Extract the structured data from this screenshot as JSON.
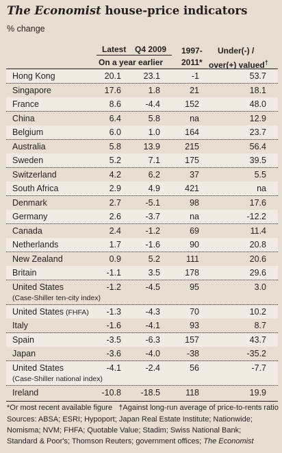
{
  "title": {
    "italic_part": "The Economist",
    "rest": "house-price indicators"
  },
  "subtitle": "% change",
  "headers": {
    "latest": "Latest",
    "q4_2009": "Q4 2009",
    "on_year_earlier": "On a year earlier",
    "period_line1": "1997-",
    "period_line2": "2011*",
    "valued_line1": "Under(-) /",
    "valued_line2": "over(+) valued",
    "valued_dagger": "†"
  },
  "chart_data": {
    "type": "table",
    "title": "The Economist house-price indicators",
    "subtitle": "% change",
    "columns": [
      "Latest",
      "Q4 2009",
      "1997-2011*",
      "Under(-) / over(+) valued†"
    ],
    "rows": [
      {
        "name": "Hong Kong",
        "values": [
          "20.1",
          "23.1",
          "-1",
          "53.7"
        ]
      },
      {
        "name": "Singapore",
        "values": [
          "17.6",
          "1.8",
          "21",
          "18.1"
        ]
      },
      {
        "name": "France",
        "values": [
          "8.6",
          "-4.4",
          "152",
          "48.0"
        ]
      },
      {
        "name": "China",
        "values": [
          "6.4",
          "5.8",
          "na",
          "12.9"
        ]
      },
      {
        "name": "Belgium",
        "values": [
          "6.0",
          "1.0",
          "164",
          "23.7"
        ]
      },
      {
        "name": "Australia",
        "values": [
          "5.8",
          "13.9",
          "215",
          "56.4"
        ]
      },
      {
        "name": "Sweden",
        "values": [
          "5.2",
          "7.1",
          "175",
          "39.5"
        ]
      },
      {
        "name": "Switzerland",
        "values": [
          "4.2",
          "6.2",
          "37",
          "5.5"
        ]
      },
      {
        "name": "South Africa",
        "values": [
          "2.9",
          "4.9",
          "421",
          "na"
        ]
      },
      {
        "name": "Denmark",
        "values": [
          "2.7",
          "-5.1",
          "98",
          "17.6"
        ]
      },
      {
        "name": "Germany",
        "values": [
          "2.6",
          "-3.7",
          "na",
          "-12.2"
        ]
      },
      {
        "name": "Canada",
        "values": [
          "2.4",
          "-1.2",
          "69",
          "11.4"
        ]
      },
      {
        "name": "Netherlands",
        "values": [
          "1.7",
          "-1.6",
          "90",
          "20.8"
        ]
      },
      {
        "name": "New Zealand",
        "values": [
          "0.9",
          "5.2",
          "111",
          "20.6"
        ]
      },
      {
        "name": "Britain",
        "values": [
          "-1.1",
          "3.5",
          "178",
          "29.6"
        ]
      },
      {
        "name": "United States",
        "note": "(Case-Shiller ten-city index)",
        "values": [
          "-1.2",
          "-4.5",
          "95",
          "3.0"
        ]
      },
      {
        "name": "United States",
        "inline_note": "(FHFA)",
        "values": [
          "-1.3",
          "-4.3",
          "70",
          "10.2"
        ]
      },
      {
        "name": "Italy",
        "values": [
          "-1.6",
          "-4.1",
          "93",
          "8.7"
        ]
      },
      {
        "name": "Spain",
        "values": [
          "-3.5",
          "-6.3",
          "157",
          "43.7"
        ]
      },
      {
        "name": "Japan",
        "values": [
          "-3.6",
          "-4.0",
          "-38",
          "-35.2"
        ]
      },
      {
        "name": "United States",
        "note": "(Case-Shiller national index)",
        "values": [
          "-4.1",
          "-2.4",
          "56",
          "-7.7"
        ]
      },
      {
        "name": "Ireland",
        "values": [
          "-10.8",
          "-18.5",
          "118",
          "19.9"
        ]
      }
    ]
  },
  "footer": {
    "line1_a": "*Or most recent available figure",
    "line1_b": "†Against long-run average of price-to-rents ratio",
    "sources_line1": "Sources: ABSA; ESRI; Hypoport; Japan Real Estate Institute; Nationwide;",
    "sources_line2": "Nomisma; NVM; FHFA; Quotable Value; Stadim; Swiss National Bank;",
    "sources_line3_a": "Standard & Poor's; Thomson Reuters; government offices;",
    "sources_line3_b": "The Economist"
  }
}
